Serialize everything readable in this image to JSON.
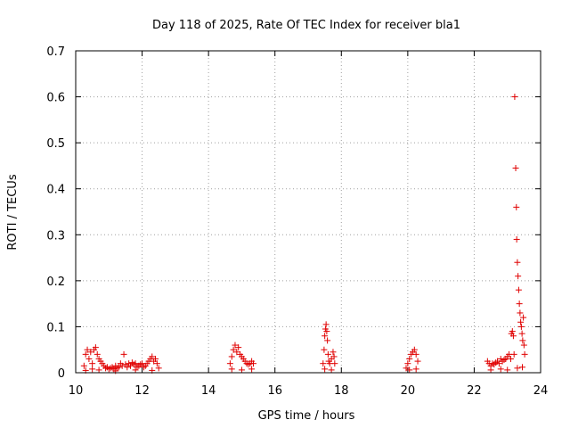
{
  "chart_data": {
    "type": "scatter",
    "title": "Day 118 of 2025, Rate Of TEC Index for receiver bla1",
    "xlabel": "GPS time / hours",
    "ylabel": "ROTI / TECUs",
    "xlim": [
      10,
      24
    ],
    "ylim": [
      0,
      0.7
    ],
    "x_ticks": [
      "10",
      "12",
      "14",
      "16",
      "18",
      "20",
      "22",
      "24"
    ],
    "y_ticks": [
      "0",
      "0.1",
      "0.2",
      "0.3",
      "0.4",
      "0.5",
      "0.6",
      "0.7"
    ],
    "grid": true,
    "marker": "plus",
    "color": "#e00000",
    "series": [
      {
        "points": [
          [
            10.25,
            0.015
          ],
          [
            10.3,
            0.04
          ],
          [
            10.35,
            0.05
          ],
          [
            10.4,
            0.03
          ],
          [
            10.45,
            0.045
          ],
          [
            10.5,
            0.02
          ],
          [
            10.55,
            0.05
          ],
          [
            10.6,
            0.055
          ],
          [
            10.65,
            0.04
          ],
          [
            10.7,
            0.03
          ],
          [
            10.75,
            0.025
          ],
          [
            10.8,
            0.02
          ],
          [
            10.85,
            0.015
          ],
          [
            10.9,
            0.01
          ],
          [
            10.95,
            0.012
          ],
          [
            11.0,
            0.008
          ],
          [
            11.05,
            0.01
          ],
          [
            11.1,
            0.012
          ],
          [
            11.15,
            0.008
          ],
          [
            11.2,
            0.015
          ],
          [
            11.25,
            0.01
          ],
          [
            11.3,
            0.012
          ],
          [
            11.35,
            0.02
          ],
          [
            11.4,
            0.015
          ],
          [
            11.45,
            0.04
          ],
          [
            11.5,
            0.018
          ],
          [
            11.55,
            0.012
          ],
          [
            11.6,
            0.02
          ],
          [
            11.65,
            0.015
          ],
          [
            11.7,
            0.022
          ],
          [
            11.75,
            0.018
          ],
          [
            11.8,
            0.02
          ],
          [
            11.85,
            0.012
          ],
          [
            11.9,
            0.015
          ],
          [
            11.95,
            0.018
          ],
          [
            12.0,
            0.02
          ],
          [
            12.05,
            0.012
          ],
          [
            12.1,
            0.015
          ],
          [
            12.15,
            0.02
          ],
          [
            12.2,
            0.025
          ],
          [
            12.25,
            0.03
          ],
          [
            12.3,
            0.035
          ],
          [
            12.35,
            0.025
          ],
          [
            12.4,
            0.03
          ],
          [
            12.45,
            0.02
          ],
          [
            12.5,
            0.01
          ],
          [
            10.3,
            0.005
          ],
          [
            10.5,
            0.008
          ],
          [
            10.7,
            0.006
          ],
          [
            11.2,
            0.004
          ],
          [
            11.8,
            0.006
          ],
          [
            12.3,
            0.005
          ],
          [
            14.65,
            0.02
          ],
          [
            14.7,
            0.035
          ],
          [
            14.75,
            0.05
          ],
          [
            14.8,
            0.06
          ],
          [
            14.85,
            0.045
          ],
          [
            14.9,
            0.055
          ],
          [
            14.95,
            0.04
          ],
          [
            15.0,
            0.035
          ],
          [
            15.05,
            0.03
          ],
          [
            15.1,
            0.025
          ],
          [
            15.15,
            0.02
          ],
          [
            15.2,
            0.018
          ],
          [
            15.25,
            0.02
          ],
          [
            15.3,
            0.025
          ],
          [
            15.35,
            0.02
          ],
          [
            14.7,
            0.008
          ],
          [
            15.0,
            0.006
          ],
          [
            15.3,
            0.008
          ],
          [
            17.45,
            0.02
          ],
          [
            17.48,
            0.05
          ],
          [
            17.5,
            0.08
          ],
          [
            17.52,
            0.095
          ],
          [
            17.54,
            0.105
          ],
          [
            17.56,
            0.09
          ],
          [
            17.58,
            0.07
          ],
          [
            17.6,
            0.04
          ],
          [
            17.62,
            0.025
          ],
          [
            17.65,
            0.02
          ],
          [
            17.7,
            0.03
          ],
          [
            17.75,
            0.045
          ],
          [
            17.78,
            0.035
          ],
          [
            17.8,
            0.02
          ],
          [
            17.5,
            0.008
          ],
          [
            17.7,
            0.006
          ],
          [
            19.95,
            0.01
          ],
          [
            20.0,
            0.02
          ],
          [
            20.05,
            0.03
          ],
          [
            20.1,
            0.04
          ],
          [
            20.15,
            0.045
          ],
          [
            20.2,
            0.05
          ],
          [
            20.25,
            0.04
          ],
          [
            20.3,
            0.025
          ],
          [
            20.05,
            0.006
          ],
          [
            20.25,
            0.008
          ],
          [
            22.4,
            0.025
          ],
          [
            22.45,
            0.02
          ],
          [
            22.5,
            0.015
          ],
          [
            22.55,
            0.02
          ],
          [
            22.6,
            0.018
          ],
          [
            22.65,
            0.022
          ],
          [
            22.7,
            0.025
          ],
          [
            22.75,
            0.02
          ],
          [
            22.8,
            0.03
          ],
          [
            22.85,
            0.025
          ],
          [
            22.9,
            0.028
          ],
          [
            22.95,
            0.03
          ],
          [
            23.0,
            0.035
          ],
          [
            23.05,
            0.04
          ],
          [
            23.1,
            0.03
          ],
          [
            23.12,
            0.085
          ],
          [
            23.15,
            0.09
          ],
          [
            23.18,
            0.08
          ],
          [
            23.2,
            0.04
          ],
          [
            23.22,
            0.6
          ],
          [
            23.25,
            0.445
          ],
          [
            23.27,
            0.36
          ],
          [
            23.28,
            0.29
          ],
          [
            23.3,
            0.24
          ],
          [
            23.32,
            0.21
          ],
          [
            23.34,
            0.18
          ],
          [
            23.36,
            0.15
          ],
          [
            23.38,
            0.13
          ],
          [
            23.4,
            0.11
          ],
          [
            23.42,
            0.1
          ],
          [
            23.44,
            0.085
          ],
          [
            23.46,
            0.07
          ],
          [
            23.48,
            0.12
          ],
          [
            23.5,
            0.06
          ],
          [
            23.52,
            0.04
          ],
          [
            22.5,
            0.006
          ],
          [
            22.8,
            0.008
          ],
          [
            23.0,
            0.006
          ],
          [
            23.3,
            0.01
          ],
          [
            23.45,
            0.012
          ]
        ]
      }
    ]
  }
}
